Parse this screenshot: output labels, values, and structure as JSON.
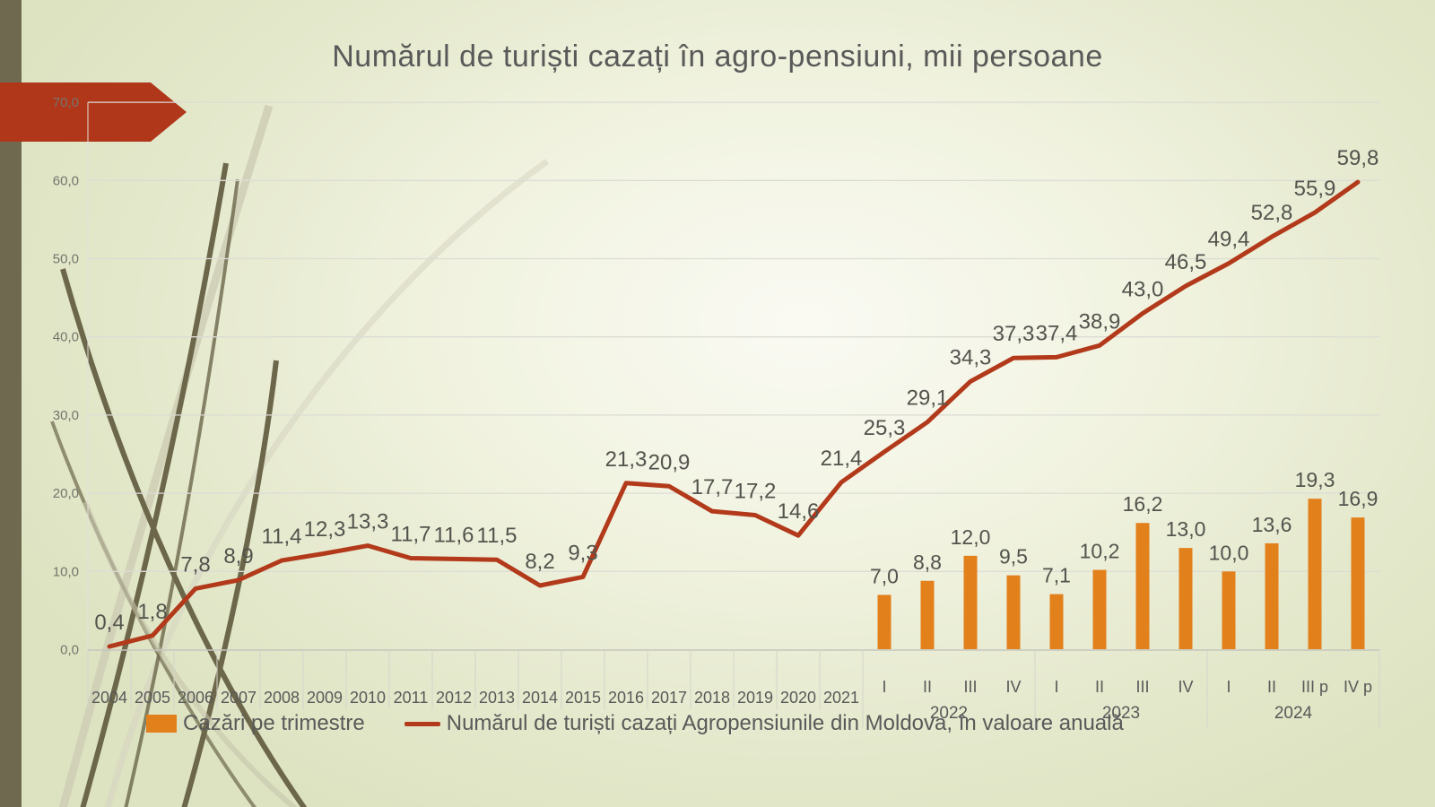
{
  "title": "Numărul de turiști cazați în agro-pensiuni, mii persoane",
  "accents": {
    "arrow_color": "#b0371a",
    "left_bar_color": "#6f6a4f",
    "stem_dark": "#6c674b",
    "stem_light": "#cdccb4"
  },
  "legend": {
    "items": [
      {
        "swatch": "bar",
        "color": "#e2801c",
        "label": "Cazări pe trimestre"
      },
      {
        "swatch": "line",
        "color": "#b23a1b",
        "label": "Numărul de turiști cazați Agropensiunile din Moldova, în valoare anuală"
      }
    ]
  },
  "chart_data": {
    "type": "combo-line-bar",
    "title": "Numărul de turiști cazați în agro-pensiuni, mii persoane",
    "ylim": [
      0,
      70
    ],
    "grid": true,
    "y_ticks": [
      "0,0",
      "10,0",
      "20,0",
      "30,0",
      "40,0",
      "50,0",
      "60,0",
      "70,0"
    ],
    "x_year_categories": [
      "2004",
      "2005",
      "2006",
      "2007",
      "2008",
      "2009",
      "2010",
      "2011",
      "2012",
      "2013",
      "2014",
      "2015",
      "2016",
      "2017",
      "2018",
      "2019",
      "2020",
      "2021"
    ],
    "x_quarter_groups": [
      {
        "year": "2022",
        "quarters": [
          "I",
          "II",
          "III",
          "IV"
        ]
      },
      {
        "year": "2023",
        "quarters": [
          "I",
          "II",
          "III",
          "IV"
        ]
      },
      {
        "year": "2024",
        "quarters": [
          "I",
          "II",
          "III p",
          "IV p"
        ]
      }
    ],
    "line_series": {
      "name": "Numărul de turiști cazați Agropensiunile din Moldova, în valoare anuală",
      "color": "#b23a1b",
      "values": [
        0.4,
        1.8,
        7.8,
        8.9,
        11.4,
        12.3,
        13.3,
        11.7,
        11.6,
        11.5,
        8.2,
        9.3,
        21.3,
        20.9,
        17.7,
        17.2,
        14.6,
        21.4,
        25.3,
        29.1,
        34.3,
        37.3,
        37.4,
        38.9,
        43.0,
        46.5,
        49.4,
        52.8,
        55.9,
        59.8
      ],
      "labels": [
        "0,4",
        "1,8",
        "7,8",
        "8,9",
        "11,4",
        "12,3",
        "13,3",
        "11,7",
        "11,6",
        "11,5",
        "8,2",
        "9,3",
        "21,3",
        "20,9",
        "17,7",
        "17,2",
        "14,6",
        "21,4",
        "25,3",
        "29,1",
        "34,3",
        "37,3",
        "37,4",
        "38,9",
        "43,0",
        "46,5",
        "49,4",
        "52,8",
        "55,9",
        "59,8"
      ]
    },
    "bar_series": {
      "name": "Cazări pe trimestre",
      "color": "#e2801c",
      "start_category_index": 18,
      "values": [
        7.0,
        8.8,
        12.0,
        9.5,
        7.1,
        10.2,
        16.2,
        13.0,
        10.0,
        13.6,
        19.3,
        16.9
      ],
      "labels": [
        "7,0",
        "8,8",
        "12,0",
        "9,5",
        "7,1",
        "10,2",
        "16,2",
        "13,0",
        "10,0",
        "13,6",
        "19,3",
        "16,9"
      ]
    },
    "legend_position": "bottom"
  }
}
